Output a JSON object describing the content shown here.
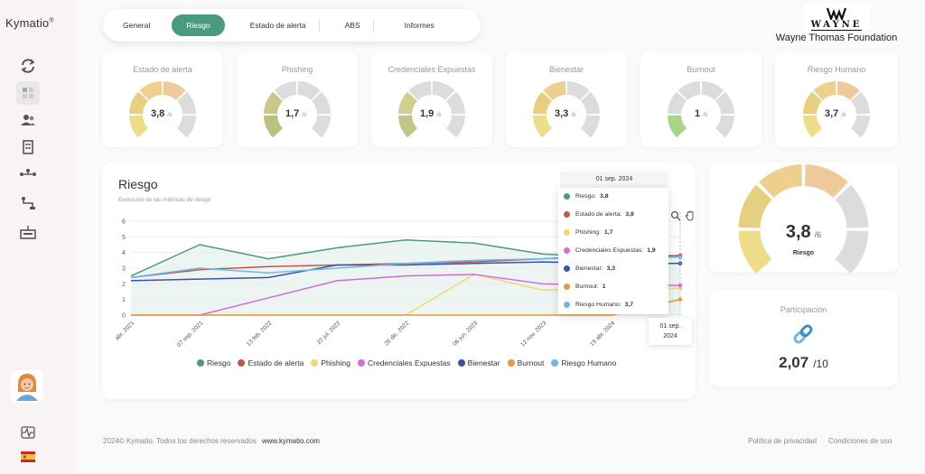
{
  "brand": {
    "name": "Kymatio",
    "mark": "®"
  },
  "sidebar": {
    "icons": [
      "refresh-icon",
      "dashboard-icon",
      "users-icon",
      "building-icon",
      "network-icon",
      "flow-icon",
      "certificate-icon"
    ],
    "bottom_icons": [
      "avatar",
      "activity-icon",
      "flag-es-icon"
    ]
  },
  "tabs": [
    {
      "label": "General",
      "active": false
    },
    {
      "label": "Riesgo",
      "active": true
    },
    {
      "label": "Estado de alerta",
      "active": false
    },
    {
      "label": "ABS",
      "active": false
    },
    {
      "label": "Informes",
      "active": false
    }
  ],
  "org": {
    "logo_text": "WAYNE",
    "name": "Wayne Thomas Foundation"
  },
  "gauges": [
    {
      "title": "Estado de alerta",
      "value": "3,8",
      "den": "/6",
      "level": 3.8
    },
    {
      "title": "Phishing",
      "value": "1,7",
      "den": "/6",
      "level": 1.7
    },
    {
      "title": "Credenciales Expuestas",
      "value": "1,9",
      "den": "/6",
      "level": 1.9
    },
    {
      "title": "Bienestar",
      "value": "3,3",
      "den": "/6",
      "level": 3.3
    },
    {
      "title": "Burnout",
      "value": "1",
      "den": "/6",
      "level": 1
    },
    {
      "title": "Riesgo Humano",
      "value": "3,7",
      "den": "/6",
      "level": 3.7
    }
  ],
  "risk_chart": {
    "title": "Riesgo",
    "subtitle": "Evolución de las métricas de riesgo",
    "y_ticks": [
      "0",
      "1",
      "2",
      "3",
      "4",
      "5",
      "6"
    ],
    "x_ticks": [
      "abr. 2021",
      "07 sep. 2021",
      "13 feb. 2022",
      "22 jul. 2022",
      "26 dic. 2022",
      "06 jun. 2023",
      "12 nov. 2023",
      "19 abr. 2024"
    ],
    "legend": [
      {
        "name": "Riesgo",
        "color": "#4a9a82"
      },
      {
        "name": "Estado de alerta",
        "color": "#c0574a"
      },
      {
        "name": "Phishing",
        "color": "#f0d77a"
      },
      {
        "name": "Credenciales Expuestas",
        "color": "#d86ad8"
      },
      {
        "name": "Bienestar",
        "color": "#3f51a6"
      },
      {
        "name": "Burnout",
        "color": "#e79a3a"
      },
      {
        "name": "Riesgo Humano",
        "color": "#6cb8e8"
      }
    ],
    "tooltip": {
      "date": "01 sep. 2024",
      "rows": [
        {
          "label": "Riesgo:",
          "value": "3,8",
          "color": "#4a9a82"
        },
        {
          "label": "Estado de alerta:",
          "value": "3,8",
          "color": "#c0574a"
        },
        {
          "label": "Phishing:",
          "value": "1,7",
          "color": "#f0d77a"
        },
        {
          "label": "Credenciales Expuestas:",
          "value": "1,9",
          "color": "#d86ad8"
        },
        {
          "label": "Bienestar:",
          "value": "3,3",
          "color": "#3f51a6"
        },
        {
          "label": "Burnout:",
          "value": "1",
          "color": "#e79a3a"
        },
        {
          "label": "Riesgo Humano:",
          "value": "3,7",
          "color": "#6cb8e8"
        }
      ]
    },
    "x_tooltip": {
      "line1": "01 sep.",
      "line2": "2024"
    }
  },
  "chart_data": {
    "type": "line",
    "title": "Riesgo",
    "subtitle": "Evolución de las métricas de riesgo",
    "ylim": [
      0,
      6
    ],
    "grid": true,
    "legend_position": "bottom",
    "x": [
      "abr. 2021",
      "07 sep. 2021",
      "13 feb. 2022",
      "22 jul. 2022",
      "26 dic. 2022",
      "06 jun. 2023",
      "12 nov. 2023",
      "19 abr. 2024",
      "01 sep. 2024"
    ],
    "series": [
      {
        "name": "Riesgo",
        "color": "#4a9a82",
        "values": [
          2.5,
          4.5,
          3.6,
          4.3,
          4.8,
          4.6,
          3.9,
          3.7,
          3.8
        ]
      },
      {
        "name": "Estado de alerta",
        "color": "#c0574a",
        "values": [
          2.4,
          2.9,
          3.1,
          3.2,
          3.3,
          3.4,
          3.6,
          3.8,
          3.8
        ]
      },
      {
        "name": "Phishing",
        "color": "#f0d77a",
        "values": [
          0,
          0,
          0,
          0,
          0,
          2.6,
          1.6,
          1.7,
          1.7
        ]
      },
      {
        "name": "Credenciales Expuestas",
        "color": "#d86ad8",
        "values": [
          0,
          0,
          1.1,
          2.2,
          2.5,
          2.6,
          2.0,
          1.9,
          1.9
        ]
      },
      {
        "name": "Bienestar",
        "color": "#3f51a6",
        "values": [
          2.2,
          2.3,
          2.4,
          3.2,
          3.2,
          3.3,
          3.4,
          3.3,
          3.3
        ]
      },
      {
        "name": "Burnout",
        "color": "#e79a3a",
        "values": [
          0,
          0,
          0,
          0,
          0,
          0,
          0,
          0,
          1
        ]
      },
      {
        "name": "Riesgo Humano",
        "color": "#6cb8e8",
        "values": [
          2.4,
          3.0,
          2.7,
          3.0,
          3.3,
          3.5,
          3.6,
          3.7,
          3.7
        ]
      }
    ]
  },
  "main_gauge": {
    "value": "3,8",
    "den": "/6",
    "label": "Riesgo",
    "level": 3.8
  },
  "participation": {
    "title": "Participación",
    "value": "2,07",
    "den": "/10"
  },
  "footer": {
    "copyright": "2024© Kymatio. Todos los derechos reservados",
    "site": "www.kymatio.com",
    "privacy": "Política de privacidad",
    "terms": "Condiciones de uso"
  },
  "colors": {
    "accent": "#4a9a82",
    "gauge_gray": "#dcdcdc"
  }
}
